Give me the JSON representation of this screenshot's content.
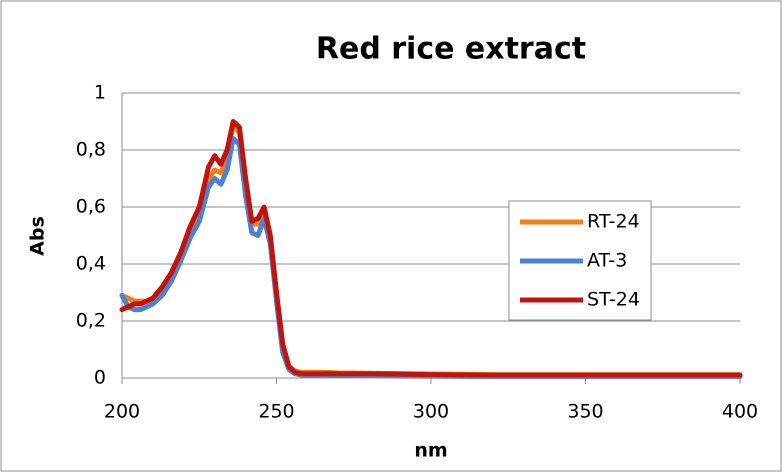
{
  "chart_data": {
    "type": "line",
    "title": "Red rice extract",
    "x_label": "nm",
    "y_label": "Abs",
    "x": [
      200,
      202,
      204,
      206,
      208,
      210,
      213,
      216,
      219,
      222,
      225,
      228,
      230,
      232,
      234,
      236,
      238,
      240,
      242,
      244,
      246,
      248,
      250,
      252,
      254,
      256,
      258,
      260,
      265,
      270,
      280,
      300,
      320,
      340,
      360,
      380,
      400
    ],
    "series": [
      {
        "name": "RT-24",
        "color": "#f07f1a",
        "values": [
          0.29,
          0.28,
          0.27,
          0.27,
          0.27,
          0.28,
          0.31,
          0.36,
          0.43,
          0.51,
          0.57,
          0.7,
          0.73,
          0.72,
          0.77,
          0.89,
          0.86,
          0.67,
          0.54,
          0.54,
          0.58,
          0.49,
          0.29,
          0.11,
          0.04,
          0.025,
          0.02,
          0.02,
          0.02,
          0.018,
          0.017,
          0.014,
          0.012,
          0.012,
          0.012,
          0.012,
          0.012
        ]
      },
      {
        "name": "AT-3",
        "color": "#4f81d0",
        "values": [
          0.29,
          0.25,
          0.24,
          0.24,
          0.25,
          0.26,
          0.29,
          0.34,
          0.41,
          0.49,
          0.55,
          0.67,
          0.7,
          0.68,
          0.73,
          0.84,
          0.82,
          0.64,
          0.51,
          0.5,
          0.56,
          0.47,
          0.27,
          0.09,
          0.03,
          0.015,
          0.01,
          0.008,
          0.008,
          0.008,
          0.007,
          0.006,
          0.005,
          0.005,
          0.005,
          0.005,
          0.005
        ]
      },
      {
        "name": "ST-24",
        "color": "#c0150f",
        "values": [
          0.24,
          0.25,
          0.26,
          0.26,
          0.27,
          0.28,
          0.32,
          0.37,
          0.44,
          0.53,
          0.6,
          0.74,
          0.78,
          0.75,
          0.8,
          0.9,
          0.88,
          0.7,
          0.55,
          0.56,
          0.6,
          0.5,
          0.3,
          0.12,
          0.04,
          0.02,
          0.015,
          0.015,
          0.015,
          0.015,
          0.015,
          0.012,
          0.01,
          0.01,
          0.01,
          0.01,
          0.01
        ]
      }
    ],
    "xlim": [
      200,
      400
    ],
    "xticks": [
      200,
      250,
      300,
      350,
      400
    ],
    "ylim": [
      0,
      1
    ],
    "yticks": [
      0,
      {
        "value": 0.2,
        "label": "0,2"
      },
      {
        "value": 0.4,
        "label": "0,4"
      },
      {
        "value": 0.6,
        "label": "0,6"
      },
      {
        "value": 0.8,
        "label": "0,8"
      },
      1
    ],
    "grid": true,
    "legend": "right"
  }
}
